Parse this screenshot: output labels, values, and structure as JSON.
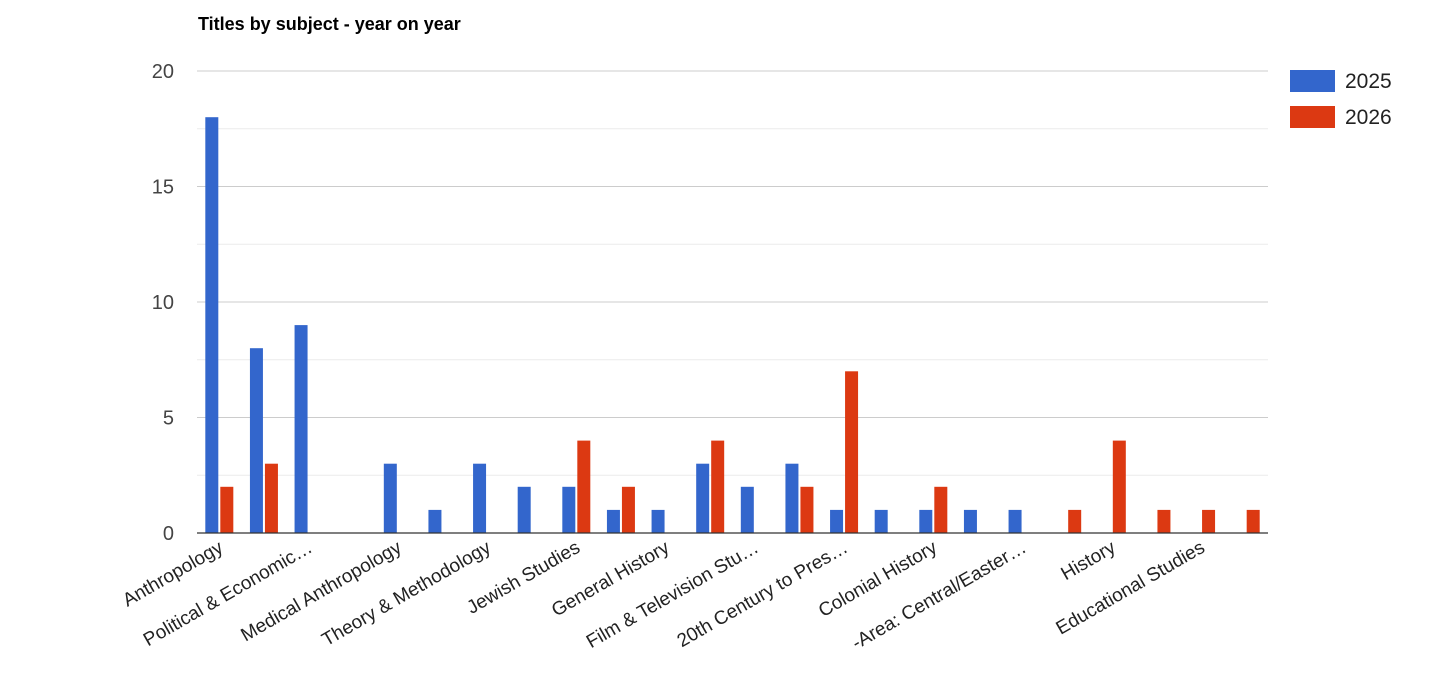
{
  "chart_data": {
    "type": "bar",
    "title": "Titles by subject - year on year",
    "xlabel": "",
    "ylabel": "",
    "ylim": [
      0,
      20
    ],
    "yticks": [
      0,
      5,
      10,
      15,
      20
    ],
    "grid": true,
    "legend_position": "right",
    "categories": [
      "Anthropology",
      "",
      "Political & Economic…",
      "",
      "Medical Anthropology",
      "",
      "Theory & Methodology",
      "",
      "Jewish Studies",
      "",
      "General History",
      "",
      "Film & Television Stu…",
      "",
      "20th Century to Pres…",
      "",
      "Colonial History",
      "",
      "-Area: Central/Easter…",
      "",
      "History",
      "",
      "Educational Studies",
      ""
    ],
    "series": [
      {
        "name": "2025",
        "color": "#3366cc",
        "values": [
          18,
          8,
          9,
          0,
          3,
          1,
          3,
          2,
          2,
          1,
          1,
          3,
          2,
          3,
          1,
          1,
          1,
          1,
          1,
          0,
          0,
          0,
          0,
          0
        ]
      },
      {
        "name": "2026",
        "color": "#dc3912",
        "values": [
          2,
          3,
          0,
          0,
          0,
          0,
          0,
          0,
          4,
          2,
          0,
          4,
          0,
          2,
          7,
          0,
          2,
          0,
          0,
          1,
          4,
          1,
          1,
          1
        ]
      }
    ]
  }
}
